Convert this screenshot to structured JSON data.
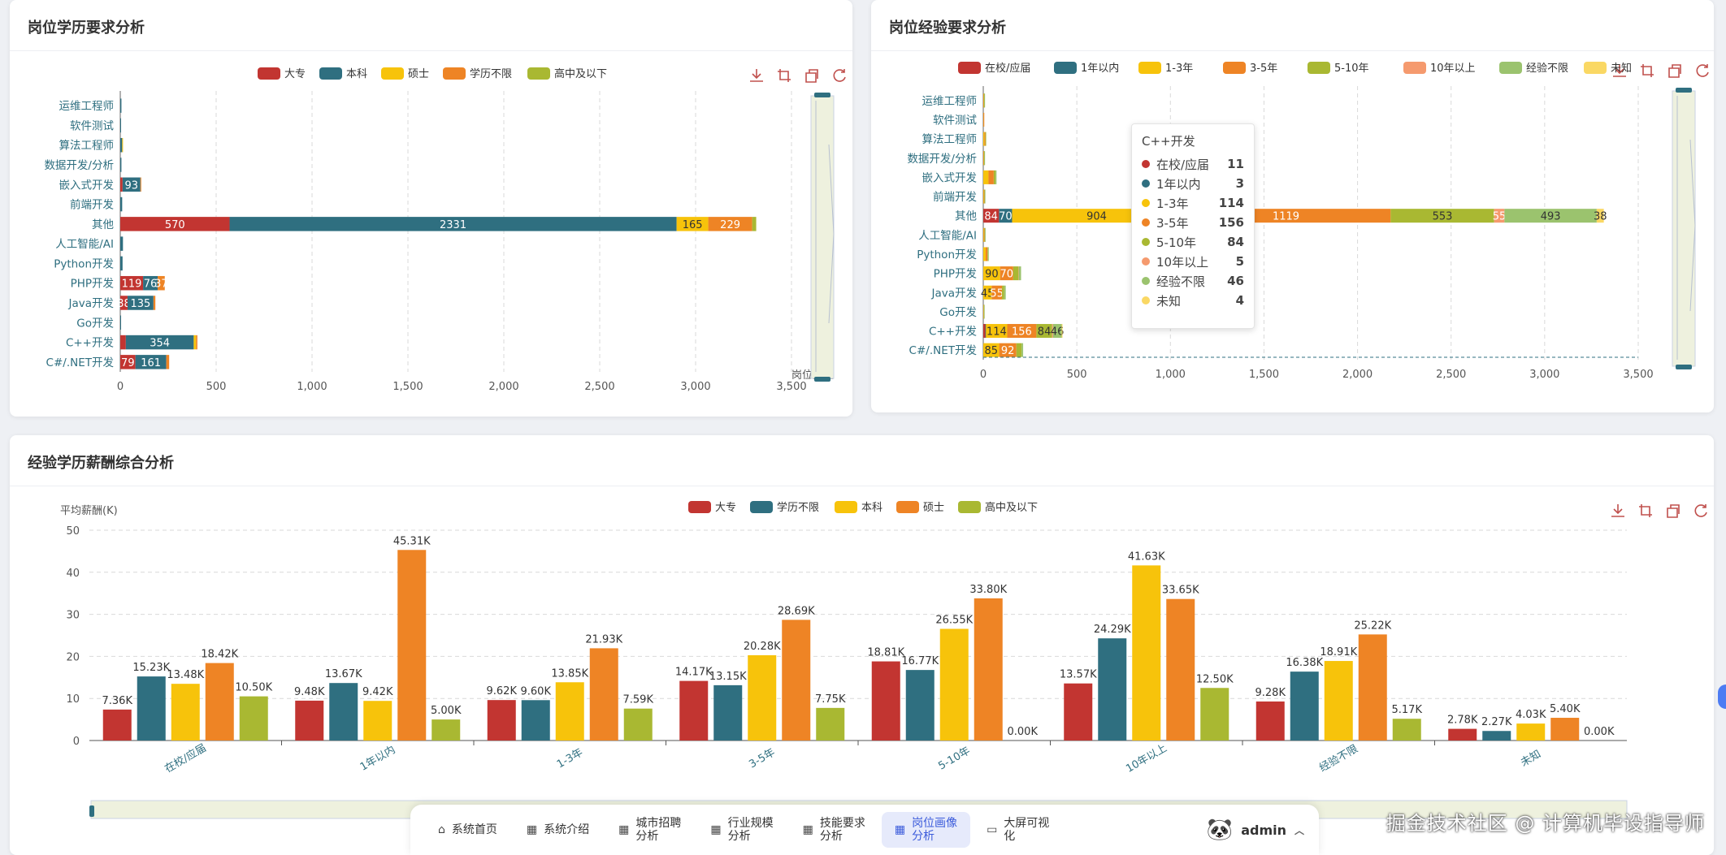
{
  "chart_data": [
    {
      "id": "edu",
      "type": "bar",
      "orientation": "horizontal",
      "stacked": true,
      "title": "岗位学历要求分析",
      "categories": [
        "运维工程师",
        "软件测试",
        "算法工程师",
        "数据开发/分析",
        "嵌入式开发",
        "前端开发",
        "其他",
        "人工智能/AI",
        "Python开发",
        "PHP开发",
        "Java开发",
        "Go开发",
        "C++开发",
        "C#/.NET开发"
      ],
      "series": [
        {
          "name": "大专",
          "color": "#c23531",
          "values": [
            0,
            0,
            0,
            0,
            12,
            0,
            570,
            0,
            0,
            119,
            38,
            0,
            29,
            79
          ]
        },
        {
          "name": "本科",
          "color": "#2f6f80",
          "values": [
            6,
            2,
            10,
            6,
            93,
            10,
            2331,
            14,
            12,
            76,
            135,
            4,
            354,
            161
          ]
        },
        {
          "name": "硕士",
          "color": "#f7c30b",
          "values": [
            0,
            0,
            2,
            0,
            0,
            0,
            165,
            0,
            0,
            0,
            0,
            0,
            12,
            0
          ]
        },
        {
          "name": "学历不限",
          "color": "#ee8425",
          "values": [
            0,
            0,
            0,
            0,
            3,
            0,
            229,
            0,
            0,
            37,
            10,
            0,
            7,
            15
          ]
        },
        {
          "name": "高中及以下",
          "color": "#a9b832",
          "values": [
            0,
            0,
            0,
            0,
            0,
            0,
            21,
            0,
            0,
            0,
            0,
            0,
            0,
            0
          ]
        }
      ],
      "xlim": [
        0,
        3500
      ],
      "xticks": [
        "0",
        "500",
        "1,000",
        "1,500",
        "2,000",
        "2,500",
        "3,000",
        "3,500"
      ],
      "axis_name": "岗位数量"
    },
    {
      "id": "exp",
      "type": "bar",
      "orientation": "horizontal",
      "stacked": true,
      "title": "岗位经验要求分析",
      "categories": [
        "运维工程师",
        "软件测试",
        "算法工程师",
        "数据开发/分析",
        "嵌入式开发",
        "前端开发",
        "其他",
        "人工智能/AI",
        "Python开发",
        "PHP开发",
        "Java开发",
        "Go开发",
        "C++开发",
        "C#/.NET开发"
      ],
      "series": [
        {
          "name": "在校/应届",
          "color": "#c23531",
          "values": [
            0,
            0,
            0,
            0,
            0,
            0,
            84,
            0,
            0,
            0,
            0,
            0,
            11,
            0
          ]
        },
        {
          "name": "1年以内",
          "color": "#2f6f80",
          "values": [
            0,
            0,
            0,
            0,
            0,
            0,
            70,
            0,
            0,
            0,
            0,
            0,
            3,
            0
          ]
        },
        {
          "name": "1-3年",
          "color": "#f7c30b",
          "values": [
            2,
            1,
            6,
            2,
            28,
            3,
            904,
            3,
            13,
            90,
            45,
            2,
            114,
            85
          ]
        },
        {
          "name": "3-5年",
          "color": "#ee8425",
          "values": [
            2,
            1,
            5,
            2,
            28,
            3,
            1119,
            4,
            10,
            70,
            55,
            1,
            156,
            92
          ]
        },
        {
          "name": "5-10年",
          "color": "#a9b832",
          "values": [
            1,
            0,
            1,
            1,
            10,
            1,
            553,
            1,
            2,
            28,
            12,
            0,
            84,
            28
          ]
        },
        {
          "name": "10年以上",
          "color": "#f59a6e",
          "values": [
            0,
            0,
            0,
            0,
            0,
            0,
            55,
            0,
            0,
            2,
            0,
            0,
            5,
            0
          ]
        },
        {
          "name": "经验不限",
          "color": "#9bc36e",
          "values": [
            1,
            0,
            0,
            1,
            5,
            1,
            493,
            2,
            2,
            12,
            8,
            1,
            46,
            8
          ]
        },
        {
          "name": "未知",
          "color": "#fad864",
          "values": [
            0,
            0,
            0,
            0,
            0,
            0,
            38,
            0,
            0,
            0,
            0,
            0,
            4,
            0
          ]
        }
      ],
      "xlim": [
        0,
        3500
      ],
      "xticks": [
        "0",
        "500",
        "1,000",
        "1,500",
        "2,000",
        "2,500",
        "3,000",
        "3,500"
      ],
      "tooltip": {
        "title": "C++开发",
        "rows": [
          {
            "name": "在校/应届",
            "value": "11",
            "color": "#c23531"
          },
          {
            "name": "1年以内",
            "value": "3",
            "color": "#2f6f80"
          },
          {
            "name": "1-3年",
            "value": "114",
            "color": "#f7c30b"
          },
          {
            "name": "3-5年",
            "value": "156",
            "color": "#ee8425"
          },
          {
            "name": "5-10年",
            "value": "84",
            "color": "#a9b832"
          },
          {
            "name": "10年以上",
            "value": "5",
            "color": "#f59a6e"
          },
          {
            "name": "经验不限",
            "value": "46",
            "color": "#9bc36e"
          },
          {
            "name": "未知",
            "value": "4",
            "color": "#fad864"
          }
        ]
      }
    },
    {
      "id": "sal",
      "type": "bar",
      "orientation": "vertical",
      "stacked": false,
      "title": "经验学历薪酬综合分析",
      "ylabel": "平均薪酬(K)",
      "ylim": [
        0,
        50
      ],
      "yticks": [
        "0",
        "10",
        "20",
        "30",
        "40",
        "50"
      ],
      "categories": [
        "在校/应届",
        "1年以内",
        "1-3年",
        "3-5年",
        "5-10年",
        "10年以上",
        "经验不限",
        "未知"
      ],
      "series": [
        {
          "name": "大专",
          "color": "#c23531",
          "values": [
            7.36,
            9.48,
            9.62,
            14.17,
            18.81,
            13.57,
            9.28,
            2.78
          ],
          "labels": [
            "7.36K",
            "9.48K",
            "9.62K",
            "14.17K",
            "18.81K",
            "13.57K",
            "9.28K",
            "2.78K"
          ]
        },
        {
          "name": "学历不限",
          "color": "#2f6f80",
          "values": [
            15.23,
            13.67,
            9.6,
            13.15,
            16.77,
            24.29,
            16.38,
            2.27
          ],
          "labels": [
            "15.23K",
            "13.67K",
            "9.60K",
            "13.15K",
            "16.77K",
            "24.29K",
            "16.38K",
            "2.27K"
          ]
        },
        {
          "name": "本科",
          "color": "#f7c30b",
          "values": [
            13.48,
            9.42,
            13.85,
            20.28,
            26.55,
            41.63,
            18.91,
            4.03
          ],
          "labels": [
            "13.48K",
            "9.42K",
            "13.85K",
            "20.28K",
            "26.55K",
            "41.63K",
            "18.91K",
            "4.03K"
          ]
        },
        {
          "name": "硕士",
          "color": "#ee8425",
          "values": [
            18.42,
            45.31,
            21.93,
            28.69,
            33.8,
            33.65,
            25.22,
            5.4
          ],
          "labels": [
            "18.42K",
            "45.31K",
            "21.93K",
            "28.69K",
            "33.80K",
            "33.65K",
            "25.22K",
            "5.40K"
          ]
        },
        {
          "name": "高中及以下",
          "color": "#a9b832",
          "values": [
            10.5,
            5.0,
            7.59,
            7.75,
            0,
            12.5,
            5.17,
            0
          ],
          "labels": [
            "10.50K",
            "5.00K",
            "7.59K",
            "7.75K",
            "0.00K",
            "12.50K",
            "5.17K",
            "0.00K"
          ]
        }
      ]
    }
  ],
  "nav": {
    "items": [
      {
        "label": "系统首页",
        "icon": "home-icon"
      },
      {
        "label": "系统介绍",
        "icon": "grid-icon"
      },
      {
        "label": "城市招聘分析",
        "icon": "grid-icon"
      },
      {
        "label": "行业规模分析",
        "icon": "grid-icon"
      },
      {
        "label": "技能要求分析",
        "icon": "grid-icon"
      },
      {
        "label": "岗位画像分析",
        "icon": "grid-icon"
      },
      {
        "label": "大屏可视化",
        "icon": "screen-icon"
      }
    ],
    "user": "admin"
  },
  "watermark": "掘金技术社区 @ 计算机毕设指导师"
}
